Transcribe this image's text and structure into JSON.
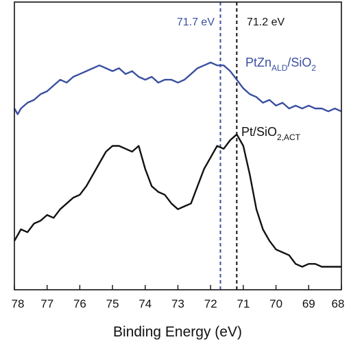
{
  "chart_data": {
    "type": "line",
    "xlabel": "Binding Energy (eV)",
    "ylabel": "",
    "title": "",
    "xlim": [
      78,
      68
    ],
    "x_reversed": true,
    "x_ticks": [
      "78",
      "77",
      "76",
      "75",
      "74",
      "73",
      "72",
      "71",
      "70",
      "69",
      "68"
    ],
    "ylim": [
      0,
      1
    ],
    "y_ticks_shown": false,
    "grid": false,
    "colors": {
      "PtZn": "#3a4fa0",
      "Pt": "#111111",
      "line_717": "#3a4fa0",
      "line_712": "#111111"
    },
    "reference_lines": [
      {
        "x": 71.7,
        "label": "71.7 eV",
        "color": "#3a4fa0",
        "style": "dashed"
      },
      {
        "x": 71.2,
        "label": "71.2 eV",
        "color": "#111111",
        "style": "dashed"
      }
    ],
    "series_labels": {
      "ptzn": {
        "base": "PtZn",
        "sub": "ALD",
        "mid": "/SiO",
        "sub2": "2"
      },
      "pt": {
        "base": "Pt/SiO",
        "sub": "2,ACT"
      }
    },
    "series": [
      {
        "color": "#3a4fa0",
        "x": [
          78.0,
          77.9,
          77.8,
          77.6,
          77.4,
          77.2,
          77.0,
          76.8,
          76.6,
          76.4,
          76.2,
          76.0,
          75.8,
          75.6,
          75.4,
          75.2,
          75.0,
          74.8,
          74.6,
          74.4,
          74.2,
          74.0,
          73.8,
          73.6,
          73.4,
          73.2,
          73.0,
          72.8,
          72.6,
          72.4,
          72.2,
          72.0,
          71.8,
          71.6,
          71.4,
          71.2,
          71.0,
          70.8,
          70.6,
          70.4,
          70.2,
          70.0,
          69.8,
          69.6,
          69.4,
          69.2,
          69.0,
          68.8,
          68.6,
          68.4,
          68.2,
          68.0
        ],
        "y": [
          0.63,
          0.61,
          0.63,
          0.65,
          0.66,
          0.68,
          0.69,
          0.71,
          0.73,
          0.72,
          0.74,
          0.75,
          0.76,
          0.77,
          0.78,
          0.77,
          0.76,
          0.77,
          0.75,
          0.76,
          0.74,
          0.73,
          0.74,
          0.72,
          0.73,
          0.73,
          0.72,
          0.73,
          0.75,
          0.77,
          0.78,
          0.79,
          0.78,
          0.78,
          0.76,
          0.73,
          0.7,
          0.68,
          0.67,
          0.65,
          0.66,
          0.64,
          0.65,
          0.63,
          0.64,
          0.63,
          0.64,
          0.63,
          0.63,
          0.62,
          0.63,
          0.62
        ]
      },
      {
        "color": "#111111",
        "x": [
          78.0,
          77.9,
          77.8,
          77.6,
          77.4,
          77.2,
          77.0,
          76.8,
          76.6,
          76.4,
          76.2,
          76.0,
          75.8,
          75.6,
          75.4,
          75.2,
          75.0,
          74.8,
          74.6,
          74.4,
          74.2,
          74.0,
          73.8,
          73.6,
          73.4,
          73.2,
          73.0,
          72.8,
          72.6,
          72.4,
          72.2,
          72.0,
          71.8,
          71.6,
          71.4,
          71.2,
          71.0,
          70.8,
          70.6,
          70.4,
          70.2,
          70.0,
          69.8,
          69.6,
          69.4,
          69.2,
          69.0,
          68.8,
          68.6,
          68.4,
          68.2,
          68.0
        ],
        "y": [
          0.17,
          0.19,
          0.21,
          0.2,
          0.23,
          0.24,
          0.26,
          0.25,
          0.28,
          0.3,
          0.32,
          0.33,
          0.36,
          0.4,
          0.44,
          0.48,
          0.5,
          0.5,
          0.49,
          0.48,
          0.5,
          0.42,
          0.36,
          0.34,
          0.33,
          0.3,
          0.28,
          0.29,
          0.3,
          0.36,
          0.42,
          0.46,
          0.5,
          0.49,
          0.52,
          0.54,
          0.5,
          0.4,
          0.28,
          0.21,
          0.17,
          0.14,
          0.13,
          0.12,
          0.09,
          0.08,
          0.09,
          0.09,
          0.08,
          0.08,
          0.08,
          0.08
        ]
      }
    ]
  }
}
